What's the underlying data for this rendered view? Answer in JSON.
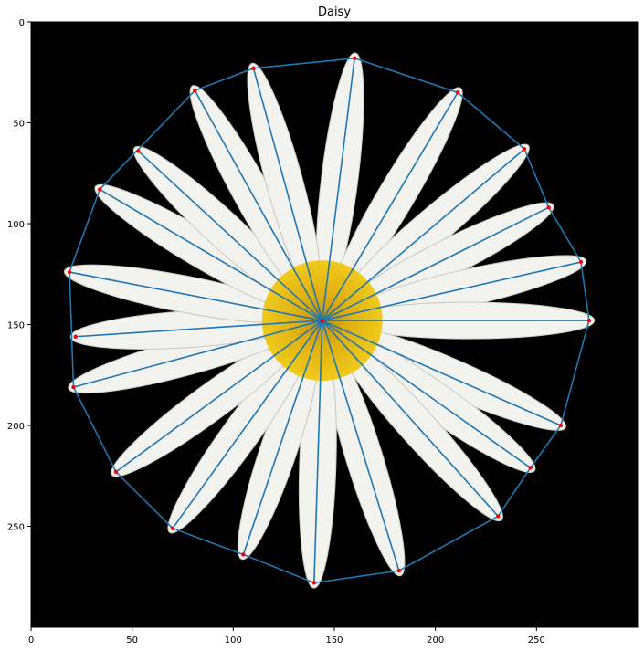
{
  "chart_data": {
    "type": "scatter",
    "title": "Daisy",
    "xlabel": "",
    "ylabel": "",
    "xlim": [
      0,
      300
    ],
    "ylim": [
      300,
      0
    ],
    "x_ticks": [
      0,
      50,
      100,
      150,
      200,
      250
    ],
    "y_ticks": [
      0,
      50,
      100,
      150,
      200,
      250
    ],
    "grid": false,
    "legend": "none",
    "background_image": "daisy-photo",
    "center": {
      "x": 144,
      "y": 148
    },
    "points": [
      {
        "x": 160,
        "y": 18
      },
      {
        "x": 211,
        "y": 35
      },
      {
        "x": 244,
        "y": 63
      },
      {
        "x": 256,
        "y": 92
      },
      {
        "x": 272,
        "y": 119
      },
      {
        "x": 276,
        "y": 148
      },
      {
        "x": 262,
        "y": 200
      },
      {
        "x": 247,
        "y": 221
      },
      {
        "x": 231,
        "y": 245
      },
      {
        "x": 182,
        "y": 272
      },
      {
        "x": 140,
        "y": 278
      },
      {
        "x": 105,
        "y": 264
      },
      {
        "x": 70,
        "y": 251
      },
      {
        "x": 42,
        "y": 223
      },
      {
        "x": 21,
        "y": 181
      },
      {
        "x": 22,
        "y": 156
      },
      {
        "x": 19,
        "y": 124
      },
      {
        "x": 34,
        "y": 83
      },
      {
        "x": 53,
        "y": 64
      },
      {
        "x": 81,
        "y": 34
      },
      {
        "x": 110,
        "y": 23
      }
    ],
    "hull_order": [
      0,
      1,
      2,
      3,
      4,
      5,
      6,
      7,
      8,
      9,
      10,
      11,
      12,
      13,
      14,
      16,
      17,
      19,
      20,
      0
    ],
    "colors": {
      "line": "#1f77b4",
      "marker": "#ff0000",
      "background": "#000000",
      "petal": "#f2f2ee",
      "center": "#e4b80f"
    }
  }
}
